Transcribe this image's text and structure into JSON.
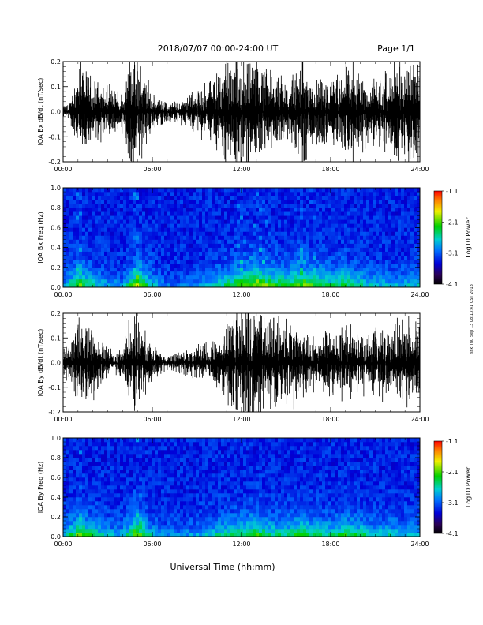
{
  "header": {
    "title": "2018/07/07  00:00-24:00 UT",
    "page": "Page 1/1"
  },
  "footer": {
    "xlabel": "Universal Time (hh:mm)",
    "side_note": "ssk Thu Sep 13 08:13:41 CST 2018"
  },
  "x_ticks": [
    "00:00",
    "06:00",
    "12:00",
    "18:00",
    "24:00"
  ],
  "chart_data": [
    {
      "type": "line",
      "ylabel": "IQA Bx dB/dt (nT/sec)",
      "xlim": [
        0,
        24
      ],
      "ylim": [
        -0.2,
        0.2
      ],
      "y_ticks": [
        "0.2",
        "0.1",
        "0.0",
        "-0.1",
        "-0.2"
      ],
      "envelope_hours": [
        0,
        0.5,
        1,
        1.5,
        2,
        2.5,
        3,
        3.5,
        4,
        4.5,
        5,
        5.5,
        6,
        6.5,
        7,
        7.5,
        8,
        8.5,
        9,
        9.5,
        10,
        10.5,
        11,
        11.5,
        12,
        12.5,
        13,
        13.5,
        14,
        14.5,
        15,
        15.5,
        16,
        16.5,
        17,
        17.5,
        18,
        18.5,
        19,
        19.5,
        20,
        20.5,
        21,
        21.5,
        22,
        22.5,
        23,
        23.5,
        24
      ],
      "envelope_amplitude": [
        0.02,
        0.04,
        0.2,
        0.14,
        0.12,
        0.1,
        0.09,
        0.08,
        0.08,
        0.2,
        0.2,
        0.15,
        0.07,
        0.05,
        0.04,
        0.04,
        0.05,
        0.06,
        0.08,
        0.1,
        0.13,
        0.16,
        0.2,
        0.2,
        0.2,
        0.2,
        0.18,
        0.16,
        0.14,
        0.12,
        0.12,
        0.16,
        0.2,
        0.16,
        0.13,
        0.12,
        0.12,
        0.13,
        0.16,
        0.2,
        0.16,
        0.12,
        0.12,
        0.14,
        0.17,
        0.16,
        0.18,
        0.2,
        0.2
      ]
    },
    {
      "type": "heatmap",
      "ylabel": "IQA Bx Freq (Hz)",
      "xlim": [
        0,
        24
      ],
      "ylim": [
        0,
        1
      ],
      "y_ticks": [
        "1.0",
        "0.8",
        "0.6",
        "0.4",
        "0.2",
        "0.0"
      ],
      "colorbar": {
        "label": "Log10 Power",
        "range": [
          -4.1,
          -1.1
        ],
        "ticks": [
          "-1.1",
          "-2.1",
          "-3.1",
          "-4.1"
        ]
      },
      "activity_hours": [
        0,
        1,
        2,
        3,
        4,
        5,
        6,
        7,
        8,
        9,
        10,
        11,
        12,
        13,
        14,
        15,
        16,
        17,
        18,
        19,
        20,
        21,
        22,
        23,
        24
      ],
      "activity_level": [
        0.2,
        0.6,
        0.35,
        0.25,
        0.2,
        0.7,
        0.3,
        0.15,
        0.15,
        0.2,
        0.3,
        0.45,
        0.6,
        0.65,
        0.55,
        0.5,
        0.6,
        0.55,
        0.45,
        0.5,
        0.4,
        0.3,
        0.3,
        0.3,
        0.3
      ]
    },
    {
      "type": "line",
      "ylabel": "IQA By dB/dt (nT/sec)",
      "xlim": [
        0,
        24
      ],
      "ylim": [
        -0.2,
        0.2
      ],
      "y_ticks": [
        "0.2",
        "0.1",
        "0.0",
        "-0.1",
        "-0.2"
      ],
      "envelope_hours": [
        0,
        0.5,
        1,
        1.5,
        2,
        2.5,
        3,
        3.5,
        4,
        4.5,
        5,
        5.5,
        6,
        6.5,
        7,
        7.5,
        8,
        8.5,
        9,
        9.5,
        10,
        10.5,
        11,
        11.5,
        12,
        12.5,
        13,
        13.5,
        14,
        14.5,
        15,
        15.5,
        16,
        16.5,
        17,
        17.5,
        18,
        18.5,
        19,
        19.5,
        20,
        20.5,
        21,
        21.5,
        22,
        22.5,
        23,
        23.5,
        24
      ],
      "envelope_amplitude": [
        0.05,
        0.07,
        0.14,
        0.15,
        0.12,
        0.08,
        0.06,
        0.04,
        0.06,
        0.16,
        0.2,
        0.14,
        0.06,
        0.04,
        0.03,
        0.03,
        0.04,
        0.05,
        0.06,
        0.07,
        0.09,
        0.12,
        0.14,
        0.2,
        0.2,
        0.2,
        0.2,
        0.2,
        0.18,
        0.16,
        0.15,
        0.16,
        0.14,
        0.12,
        0.1,
        0.11,
        0.13,
        0.12,
        0.16,
        0.13,
        0.11,
        0.13,
        0.15,
        0.12,
        0.11,
        0.14,
        0.16,
        0.15,
        0.14
      ]
    },
    {
      "type": "heatmap",
      "ylabel": "IQA By Freq (Hz)",
      "xlim": [
        0,
        24
      ],
      "ylim": [
        0,
        1
      ],
      "y_ticks": [
        "1.0",
        "0.8",
        "0.6",
        "0.4",
        "0.2",
        "0.0"
      ],
      "colorbar": {
        "label": "Log10 Power",
        "range": [
          -4.1,
          -1.1
        ],
        "ticks": [
          "-1.1",
          "-2.1",
          "-3.1",
          "-4.1"
        ]
      },
      "activity_hours": [
        0,
        1,
        2,
        3,
        4,
        5,
        6,
        7,
        8,
        9,
        10,
        11,
        12,
        13,
        14,
        15,
        16,
        17,
        18,
        19,
        20,
        21,
        22,
        23,
        24
      ],
      "activity_level": [
        0.3,
        0.6,
        0.45,
        0.3,
        0.25,
        0.65,
        0.3,
        0.2,
        0.2,
        0.25,
        0.35,
        0.4,
        0.5,
        0.55,
        0.45,
        0.4,
        0.55,
        0.45,
        0.4,
        0.5,
        0.45,
        0.35,
        0.35,
        0.3,
        0.3
      ]
    }
  ]
}
